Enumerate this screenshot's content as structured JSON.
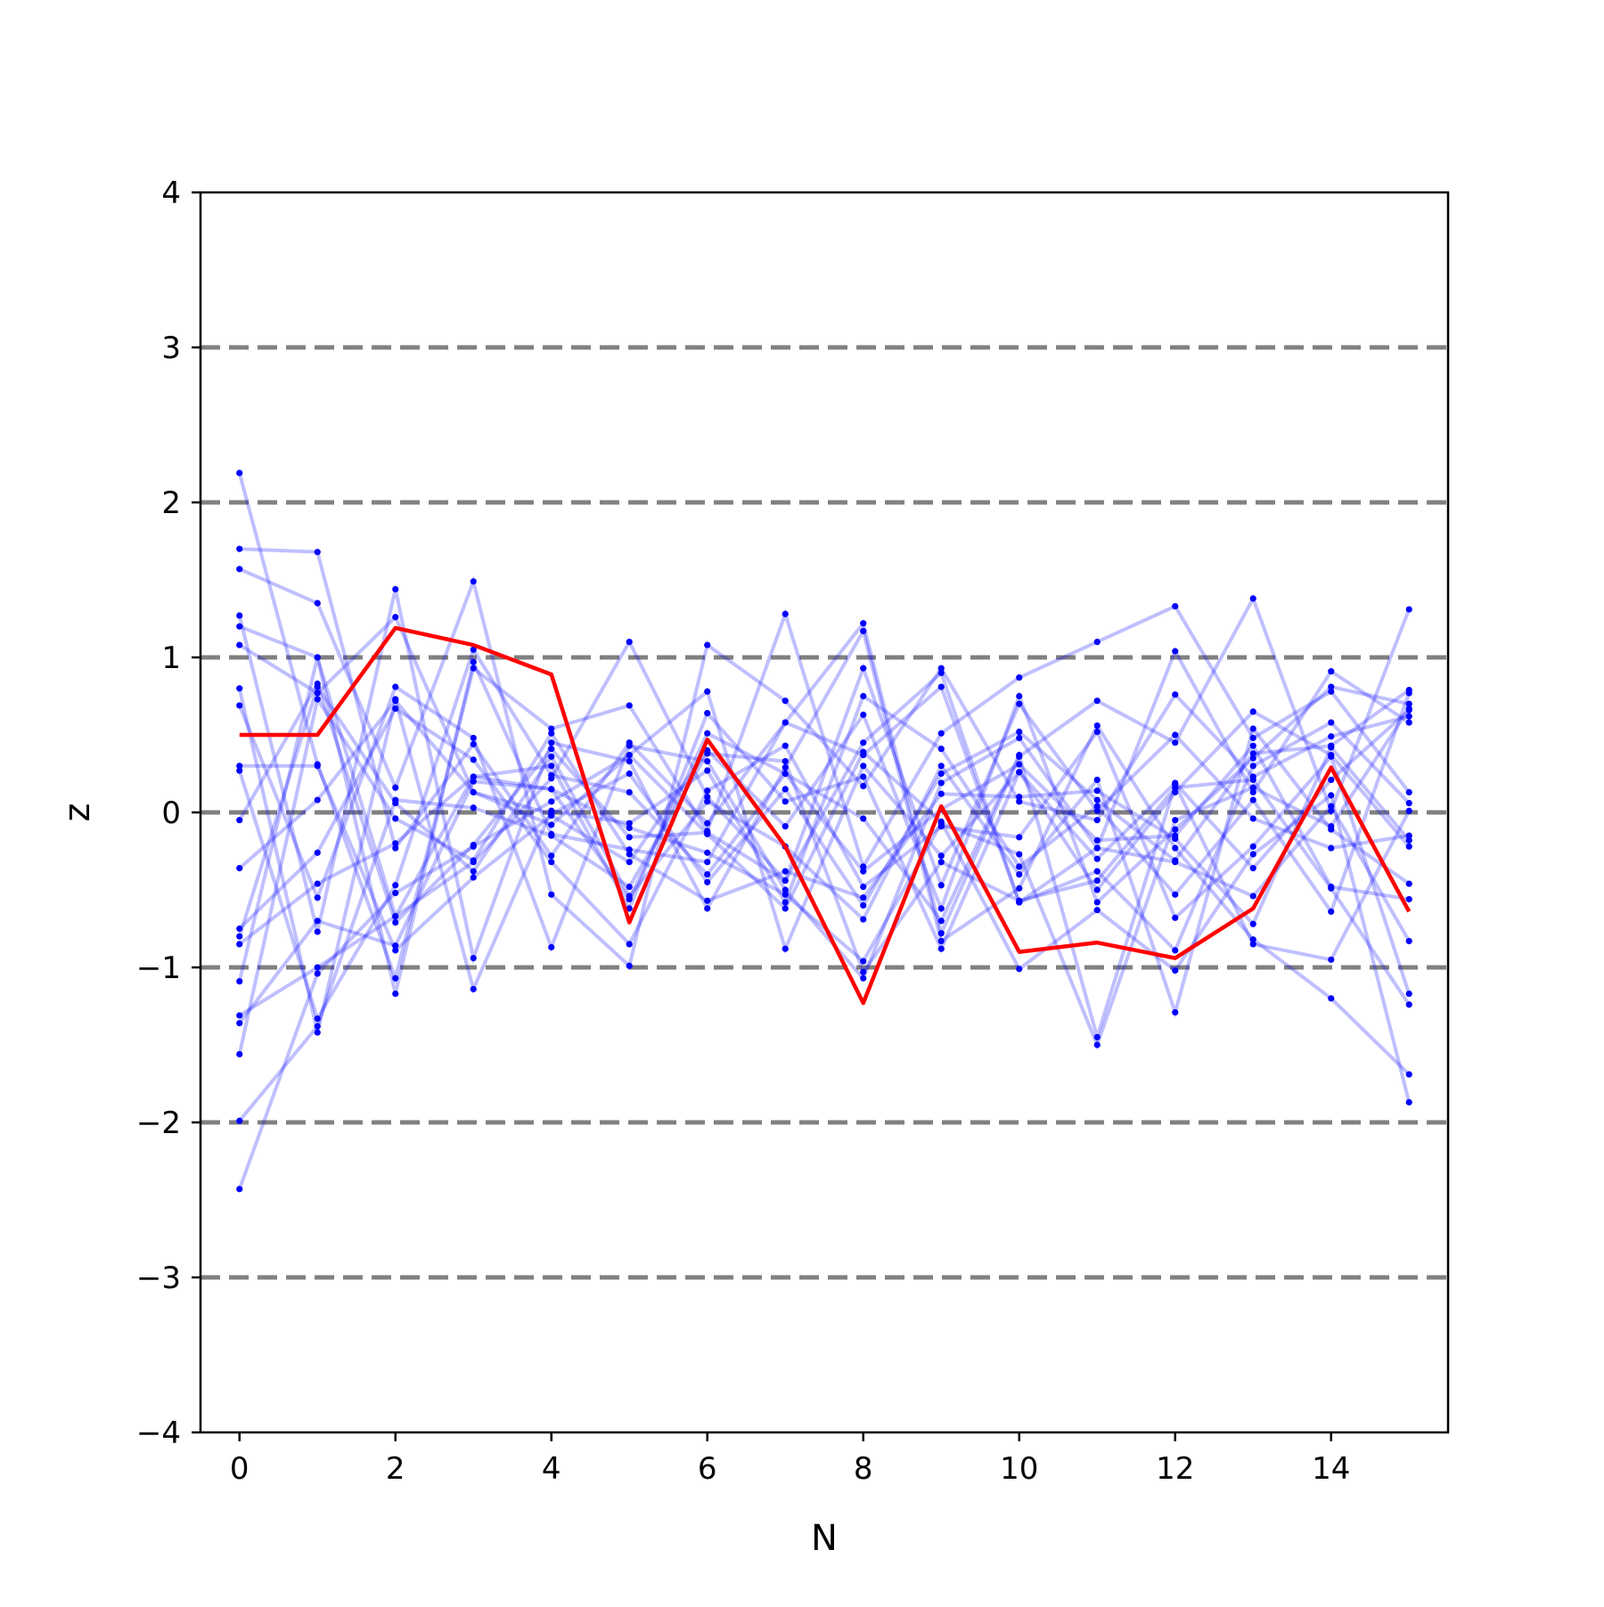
{
  "chart_data": {
    "type": "line",
    "xlabel": "N",
    "ylabel": "z",
    "xlim": [
      -0.5,
      15.5
    ],
    "ylim": [
      -4,
      4
    ],
    "x_ticks": [
      0,
      2,
      4,
      6,
      8,
      10,
      12,
      14
    ],
    "x_tick_labels": [
      "0",
      "2",
      "4",
      "6",
      "8",
      "10",
      "12",
      "14"
    ],
    "y_ticks": [
      -4,
      -3,
      -2,
      -1,
      0,
      1,
      2,
      3,
      4
    ],
    "y_tick_labels": [
      "−4",
      "−3",
      "−2",
      "−1",
      "0",
      "1",
      "2",
      "3",
      "4"
    ],
    "reference_lines": [
      -3,
      -2,
      -1,
      0,
      1,
      2,
      3
    ],
    "colors": {
      "background_series": "#0000ff",
      "highlight": "#ff0000",
      "reference": "#808080"
    },
    "x": [
      0,
      1,
      2,
      3,
      4,
      5,
      6,
      7,
      8,
      9,
      10,
      11,
      12,
      13,
      14,
      15
    ],
    "highlight_series": {
      "values": [
        0.5,
        0.5,
        1.19,
        1.08,
        0.89,
        -0.71,
        0.47,
        -0.22,
        -1.23,
        0.04,
        -0.9,
        -0.84,
        -0.94,
        -0.62,
        0.29,
        -0.64
      ]
    },
    "background_series": [
      {
        "values": [
          2.19,
          0.31,
          -1.07,
          0.93,
          0.54,
          0.69,
          -0.12,
          1.28,
          -0.35,
          0.51,
          0.87,
          1.1,
          1.33,
          0.48,
          0.78,
          0.13
        ]
      },
      {
        "values": [
          1.7,
          1.68,
          -0.23,
          0.44,
          -0.28,
          0.45,
          -0.07,
          0.58,
          1.22,
          -0.78,
          0.36,
          0.72,
          0.45,
          1.38,
          0.01,
          1.31
        ]
      },
      {
        "values": [
          1.57,
          1.35,
          0.16,
          1.49,
          -0.53,
          -0.99,
          1.08,
          0.72,
          0.17,
          0.93,
          0.07,
          -0.05,
          0.76,
          0.23,
          0.49,
          0.62
        ]
      },
      {
        "values": [
          1.27,
          -0.77,
          1.44,
          -0.94,
          0.45,
          0.33,
          -0.62,
          0.29,
          1.17,
          -0.83,
          -0.49,
          0.56,
          -0.23,
          -0.82,
          -1.2,
          -1.69
        ]
      },
      {
        "values": [
          1.2,
          1.0,
          -0.67,
          -0.32,
          0.22,
          1.1,
          0.1,
          -0.44,
          0.45,
          0.9,
          -0.58,
          -0.23,
          1.04,
          0.13,
          0.91,
          0.58
        ]
      },
      {
        "values": [
          1.08,
          0.77,
          1.26,
          0.13,
          -0.08,
          0.37,
          0.78,
          -0.88,
          0.3,
          -0.28,
          0.26,
          -0.5,
          0.13,
          0.65,
          0.37,
          -0.22
        ]
      },
      {
        "values": [
          0.8,
          -1.42,
          0.73,
          -1.14,
          0.01,
          -0.07,
          0.27,
          -0.58,
          0.75,
          0.41,
          -0.35,
          0.04,
          -0.53,
          0.08,
          -0.64,
          0.77
        ]
      },
      {
        "values": [
          0.69,
          -0.55,
          0.81,
          0.48,
          -0.87,
          0.43,
          0.33,
          -0.5,
          -1.07,
          0.19,
          0.48,
          -0.23,
          -0.32,
          -0.54,
          0.04,
          -0.83
        ]
      },
      {
        "values": [
          0.3,
          0.3,
          -0.89,
          -0.42,
          -0.02,
          -0.32,
          0.4,
          -0.09,
          0.63,
          -0.62,
          0.75,
          -0.58,
          -0.11,
          0.35,
          0.81,
          0.7
        ]
      },
      {
        "values": [
          0.27,
          -1.33,
          -0.47,
          1.05,
          0.24,
          0.13,
          -0.4,
          0.25,
          -0.04,
          -0.7,
          0.37,
          -1.45,
          0.18,
          -0.85,
          -0.95,
          0.01
        ]
      },
      {
        "values": [
          -0.05,
          0.83,
          -0.71,
          -0.21,
          0.41,
          -0.16,
          -0.13,
          -0.44,
          0.93,
          -0.47,
          0.7,
          0.01,
          0.5,
          -0.04,
          -0.23,
          -0.15
        ]
      },
      {
        "values": [
          -0.36,
          0.08,
          0.72,
          0.13,
          -0.01,
          0.25,
          -0.45,
          0.15,
          -0.6,
          0.25,
          0.52,
          0.08,
          -0.31,
          0.38,
          0.43,
          0.79
        ]
      },
      {
        "values": [
          -0.75,
          -0.26,
          0.67,
          0.34,
          -0.32,
          -0.85,
          0.14,
          0.43,
          -0.48,
          -0.09,
          -0.16,
          0.52,
          -0.68,
          -0.22,
          0.36,
          -1.17
        ]
      },
      {
        "values": [
          -0.8,
          0.81,
          0.06,
          -0.38,
          0.36,
          -0.54,
          0.07,
          -0.22,
          -0.69,
          0.3,
          -0.4,
          0.21,
          -1.29,
          0.54,
          -0.11,
          -0.46
        ]
      },
      {
        "values": [
          -0.85,
          -0.46,
          -0.2,
          0.23,
          0.15,
          -0.1,
          -0.26,
          -0.53,
          -0.96,
          -0.07,
          -0.27,
          -1.5,
          -0.05,
          0.16,
          -0.09,
          0.67
        ]
      },
      {
        "values": [
          -1.09,
          1.0,
          -1.17,
          0.97,
          -0.14,
          -0.24,
          -0.32,
          0.58,
          0.37,
          0.81,
          -0.58,
          -0.38,
          -0.89,
          0.3,
          0.58,
          0.06
        ]
      },
      {
        "values": [
          -1.31,
          -1.0,
          -0.67,
          0.23,
          0.3,
          -0.62,
          0.64,
          0.07,
          0.23,
          -0.88,
          0.26,
          -0.3,
          0.19,
          -0.36,
          0.21,
          0.66
        ]
      },
      {
        "values": [
          -1.36,
          -0.7,
          -0.86,
          0.2,
          0.15,
          -0.56,
          0.51,
          0.25,
          -0.38,
          0.02,
          0.31,
          -0.18,
          -0.15,
          0.43,
          -0.48,
          -0.56
        ]
      },
      {
        "values": [
          -1.56,
          0.73,
          -0.04,
          -0.31,
          0.51,
          -0.27,
          -0.57,
          -0.38,
          -0.55,
          0.12,
          0.1,
          0.14,
          -0.17,
          -0.72,
          0.42,
          -0.18
        ]
      },
      {
        "values": [
          -1.99,
          -1.38,
          0.08,
          0.03,
          -0.15,
          -0.48,
          0.38,
          0.33,
          -1.03,
          -0.32,
          -0.57,
          -0.44,
          0.16,
          0.21,
          -0.49,
          -1.24
        ]
      },
      {
        "values": [
          -2.43,
          -1.04,
          -0.52,
          -0.22,
          0.07,
          0.37,
          -0.14,
          -0.62,
          0.39,
          -0.06,
          -1.01,
          -0.63,
          -1.02,
          -0.27,
          0.11,
          -1.87
        ]
      }
    ]
  }
}
